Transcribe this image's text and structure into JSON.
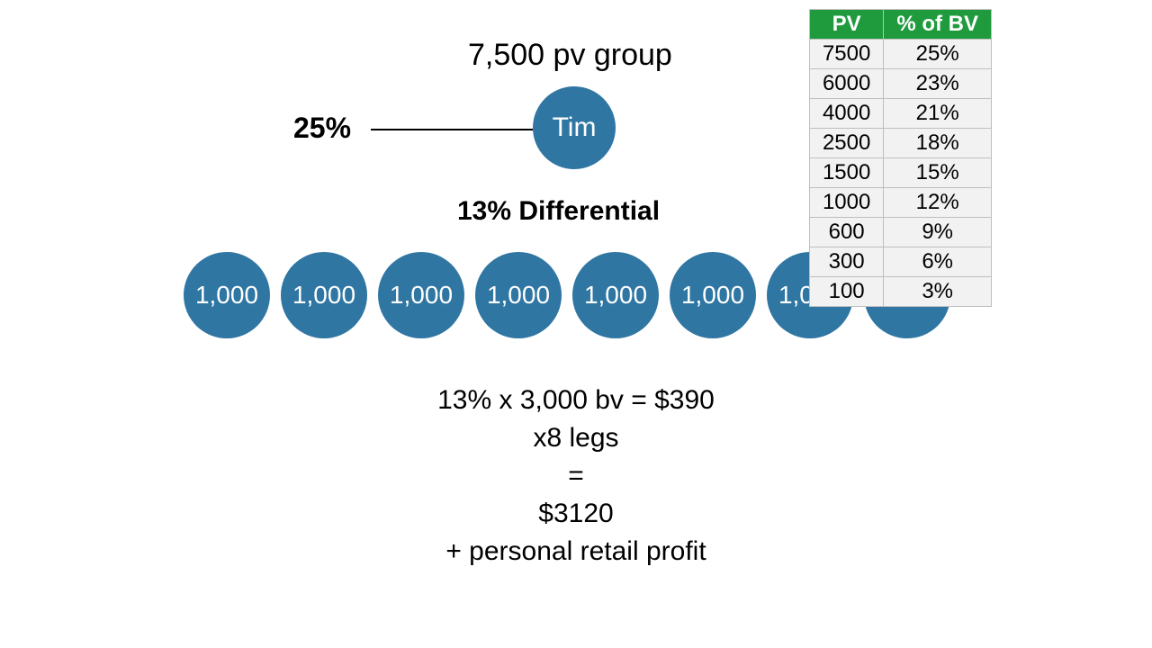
{
  "colors": {
    "circle_fill": "#2f76a3",
    "table_header_bg": "#1f9b3e",
    "table_header_text": "#ffffff",
    "table_cell_bg": "#f2f2f2",
    "table_border": "#bfbfbf",
    "background": "#ffffff",
    "text": "#000000"
  },
  "header": {
    "title": "7,500 pv group",
    "top_percent": "25%",
    "top_name": "Tim"
  },
  "differential": {
    "label": "13% Differential"
  },
  "legs": {
    "count": 8,
    "value_label": "1,000"
  },
  "calc": {
    "line1": "13% x 3,000 bv = $390",
    "line2": "x8 legs",
    "line3": "=",
    "line4": "$3120",
    "line5": "+ personal retail profit"
  },
  "table": {
    "columns": [
      "PV",
      "% of BV"
    ],
    "rows": [
      [
        "7500",
        "25%"
      ],
      [
        "6000",
        "23%"
      ],
      [
        "4000",
        "21%"
      ],
      [
        "2500",
        "18%"
      ],
      [
        "1500",
        "15%"
      ],
      [
        "1000",
        "12%"
      ],
      [
        "600",
        "9%"
      ],
      [
        "300",
        "6%"
      ],
      [
        "100",
        "3%"
      ]
    ]
  }
}
